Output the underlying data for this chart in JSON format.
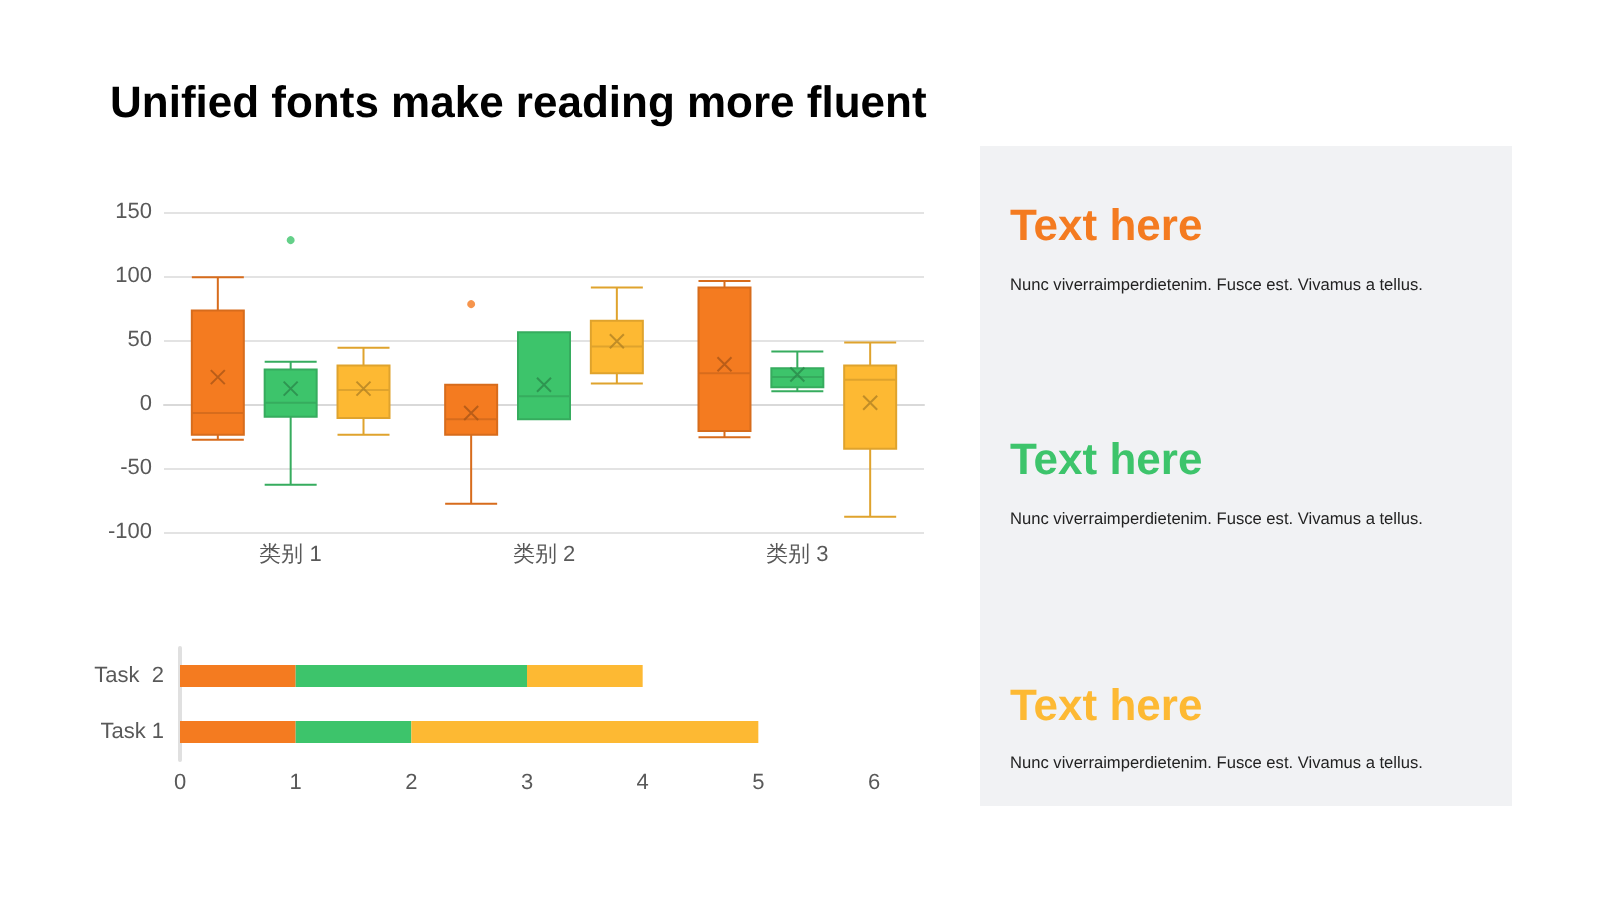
{
  "chart_data": [
    {
      "type": "box",
      "title": "Unified fonts make reading more fluent",
      "categories": [
        "类别 1",
        "类别 2",
        "类别 3"
      ],
      "series": [
        {
          "color": "#f47b20",
          "boxes": [
            {
              "low": -28,
              "q1": -24,
              "median": -7,
              "q3": 73,
              "high": 99,
              "mean": 21
            },
            {
              "low": -78,
              "q1": -24,
              "median": -12,
              "q3": 15,
              "high": 15,
              "mean": -7,
              "outliers": [
                78
              ]
            },
            {
              "low": -26,
              "q1": -21,
              "median": 24,
              "q3": 91,
              "high": 96,
              "mean": 31
            }
          ]
        },
        {
          "color": "#3dc46b",
          "boxes": [
            {
              "low": -63,
              "q1": -10,
              "median": 1,
              "q3": 27,
              "high": 33,
              "mean": 12,
              "outliers": [
                128
              ]
            },
            {
              "low": -12,
              "q1": -12,
              "median": 6,
              "q3": 56,
              "high": 56,
              "mean": 15
            },
            {
              "low": 10,
              "q1": 13,
              "median": 21,
              "q3": 28,
              "high": 41,
              "mean": 23
            }
          ]
        },
        {
          "color": "#fdb933",
          "boxes": [
            {
              "low": -24,
              "q1": -11,
              "median": 11,
              "q3": 30,
              "high": 44,
              "mean": 12
            },
            {
              "low": 16,
              "q1": 24,
              "median": 45,
              "q3": 65,
              "high": 91,
              "mean": 49
            },
            {
              "low": -88,
              "q1": -35,
              "median": 19,
              "q3": 30,
              "high": 48,
              "mean": 1
            }
          ]
        }
      ],
      "ylim": [
        -100,
        150
      ],
      "yticks": [
        -100,
        -50,
        0,
        50,
        100,
        150
      ],
      "grid": "y"
    },
    {
      "type": "bar",
      "orientation": "horizontal",
      "stacked": true,
      "categories": [
        "Task  2",
        "Task 1"
      ],
      "series": [
        {
          "color": "#f47b20",
          "values": [
            1,
            1
          ]
        },
        {
          "color": "#3dc46b",
          "values": [
            2,
            1
          ]
        },
        {
          "color": "#fdb933",
          "values": [
            1,
            3
          ]
        }
      ],
      "xlim": [
        0,
        6
      ],
      "xticks": [
        0,
        1,
        2,
        3,
        4,
        5,
        6
      ]
    },
    {
      "type": "other",
      "annotations": [
        "Text here",
        "Nunc viverraimperdietenim. Fusce est. Vivamus a tellus.",
        "Text here",
        "Nunc viverraimperdietenim. Fusce est. Vivamus a tellus.",
        "Text here",
        "Nunc viverraimperdietenim. Fusce est. Vivamus a tellus."
      ],
      "colors": [
        "#f47b20",
        "#222222",
        "#3dc46b",
        "#222222",
        "#fdb933",
        "#222222"
      ]
    }
  ]
}
